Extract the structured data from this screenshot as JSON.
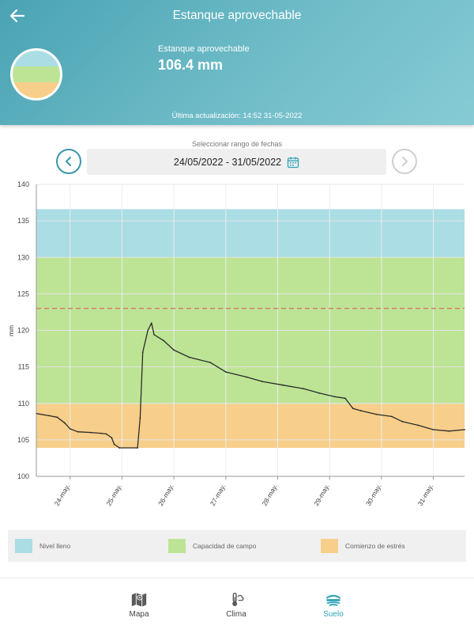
{
  "header": {
    "title": "Estanque aprovechable",
    "metric_label": "Estanque aprovechable",
    "metric_value": "106.4 mm",
    "last_update": "Última actualización: 14:52 31-05-2022"
  },
  "date_range": {
    "caption": "Seleccionar rango de fechas",
    "value": "24/05/2022 - 31/05/2022"
  },
  "colors": {
    "full": "#abdde5",
    "field": "#bde495",
    "stress": "#f7cf8a",
    "accent": "#2fa3b8",
    "threshold": "#d4785a"
  },
  "legend": [
    {
      "label": "Nivel lleno",
      "color": "#abdde5"
    },
    {
      "label": "Capacidad de campo",
      "color": "#bde495"
    },
    {
      "label": "Comienzo de estrés",
      "color": "#f7cf8a"
    }
  ],
  "nav": [
    {
      "label": "Mapa",
      "icon": "map-icon"
    },
    {
      "label": "Clima",
      "icon": "thermometer-icon"
    },
    {
      "label": "Suelo",
      "icon": "soil-icon"
    }
  ],
  "chart_data": {
    "type": "line",
    "ylabel": "mm",
    "ylim": [
      100,
      140
    ],
    "yticks": [
      100,
      105,
      110,
      115,
      120,
      125,
      130,
      135,
      140
    ],
    "xlim": [
      23.65,
      31.9
    ],
    "xticks": [
      {
        "label": "24-may.",
        "x": 24.3
      },
      {
        "label": "25-may.",
        "x": 25.3
      },
      {
        "label": "26-may.",
        "x": 26.3
      },
      {
        "label": "27-may.",
        "x": 27.3
      },
      {
        "label": "28-may.",
        "x": 28.3
      },
      {
        "label": "29-may.",
        "x": 29.3
      },
      {
        "label": "30-may.",
        "x": 30.3
      },
      {
        "label": "31-may.",
        "x": 31.3
      }
    ],
    "bands": [
      {
        "name": "Nivel lleno",
        "from": 130,
        "to": 136.6
      },
      {
        "name": "Capacidad de campo",
        "from": 109.9,
        "to": 130
      },
      {
        "name": "Comienzo de estrés",
        "from": 103.9,
        "to": 109.9
      }
    ],
    "threshold": 123.0,
    "series": [
      {
        "name": "Estanque aprovechable",
        "x": [
          23.65,
          23.9,
          24.05,
          24.2,
          24.3,
          24.45,
          24.7,
          24.9,
          25.0,
          25.1,
          25.15,
          25.25,
          25.6,
          25.65,
          25.7,
          25.8,
          25.87,
          25.92,
          26.1,
          26.3,
          26.6,
          27.0,
          27.3,
          27.7,
          28.0,
          28.4,
          28.8,
          29.1,
          29.4,
          29.6,
          29.75,
          29.9,
          30.2,
          30.5,
          30.7,
          31.0,
          31.3,
          31.6,
          31.9
        ],
        "y": [
          108.6,
          108.3,
          108.1,
          107.3,
          106.5,
          106.1,
          106.0,
          105.9,
          105.8,
          105.3,
          104.4,
          103.9,
          103.9,
          108.0,
          117.0,
          120.0,
          121.0,
          119.4,
          118.6,
          117.3,
          116.3,
          115.6,
          114.3,
          113.6,
          113.0,
          112.5,
          112.0,
          111.4,
          110.9,
          110.7,
          109.3,
          109.0,
          108.5,
          108.2,
          107.5,
          107.0,
          106.4,
          106.2,
          106.4
        ]
      }
    ]
  }
}
